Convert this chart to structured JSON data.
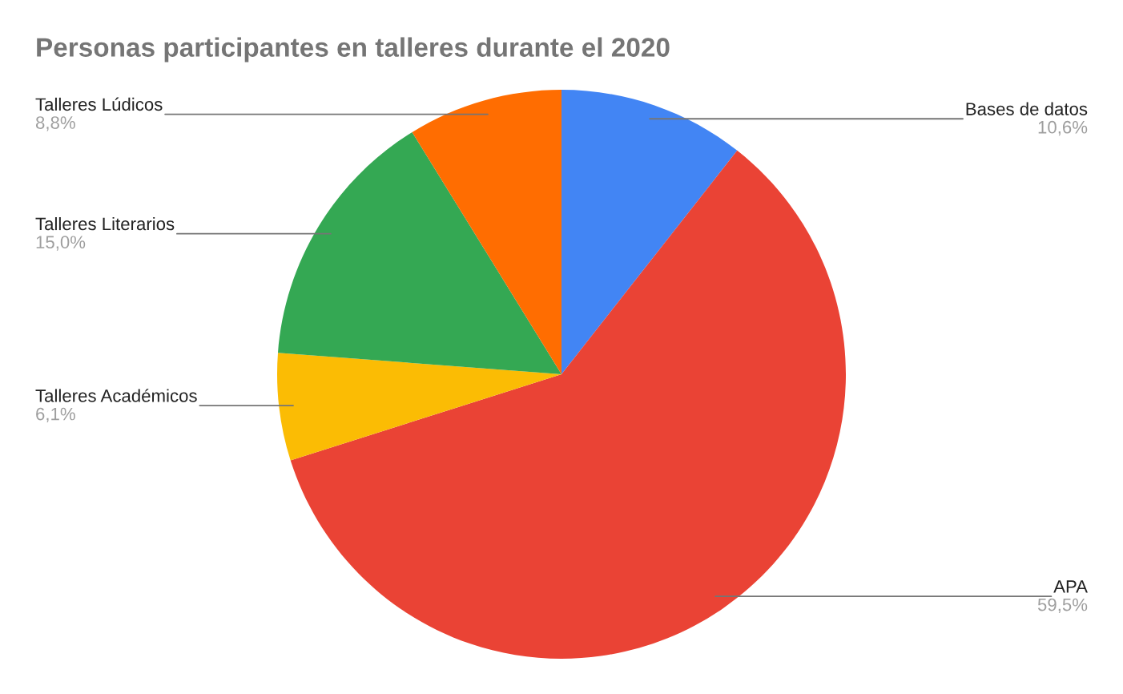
{
  "chart_data": {
    "type": "pie",
    "title": "Personas participantes en talleres durante el 2020",
    "categories": [
      "Bases de datos",
      "APA",
      "Talleres Académicos",
      "Talleres Literarios",
      "Talleres Lúdicos"
    ],
    "values": [
      10.6,
      59.5,
      6.1,
      15.0,
      8.8
    ],
    "colors": [
      "#4285f4",
      "#ea4335",
      "#fbbc04",
      "#34a853",
      "#ff6d01"
    ],
    "value_labels": [
      "10,6%",
      "59,5%",
      "6,1%",
      "15,0%",
      "8,8%"
    ]
  }
}
